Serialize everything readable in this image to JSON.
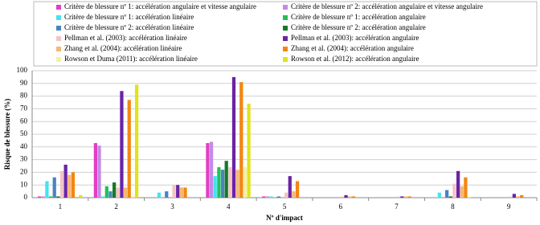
{
  "chart_data": {
    "type": "bar",
    "y_label": "Risque de blessure (%)",
    "x_label": "Nº d'impact",
    "categories": [
      "1",
      "2",
      "3",
      "4",
      "5",
      "6",
      "7",
      "8",
      "9"
    ],
    "ylim": [
      0,
      100
    ],
    "yticks": [
      0,
      10,
      20,
      30,
      40,
      50,
      60,
      70,
      80,
      90,
      100
    ],
    "grid": true,
    "series": [
      {
        "name": "Critère de blessure nº 1: accélération angulaire et vitesse angulaire",
        "color": "#e23fc4",
        "values": [
          1,
          43,
          0,
          43,
          1,
          0,
          0,
          0,
          0
        ]
      },
      {
        "name": "Critère de blessure nº 2: accélération angulaire et vitesse angulaire",
        "color": "#c58ae6",
        "values": [
          1,
          41,
          0,
          44,
          1,
          0,
          0,
          0,
          0
        ]
      },
      {
        "name": "Critère de blessure nº 1: accélération linéaire",
        "color": "#45e3ef",
        "values": [
          13,
          1,
          4,
          17,
          1,
          0,
          0,
          4,
          0
        ]
      },
      {
        "name": "Critère de blessure nº 1: accélération angulaire",
        "color": "#22c05a",
        "values": [
          1,
          9,
          0,
          24,
          0,
          0,
          0,
          0,
          0
        ]
      },
      {
        "name": "Critère de blessure nº 2: accélération linéaire",
        "color": "#4a82c2",
        "values": [
          16,
          5,
          5,
          22,
          1,
          0,
          0,
          6,
          0
        ]
      },
      {
        "name": "Critère de blessure nº 2: accélération angulaire",
        "color": "#137a28",
        "values": [
          1,
          12,
          0,
          29,
          0,
          0,
          0,
          1,
          0
        ]
      },
      {
        "name": "Pellman et al. (2003): accélération linéaire",
        "color": "#f4c4c4",
        "values": [
          21,
          8,
          10,
          24,
          4,
          1,
          1,
          11,
          1
        ]
      },
      {
        "name": "Pellman et al. (2003): accélération angulaire",
        "color": "#6a24a4",
        "values": [
          26,
          84,
          10,
          95,
          17,
          2,
          1,
          21,
          3
        ]
      },
      {
        "name": "Zhang et al. (2004): accélération linéaire",
        "color": "#f5b676",
        "values": [
          18,
          8,
          8,
          22,
          5,
          1,
          1,
          9,
          1
        ]
      },
      {
        "name": "Zhang et al. (2004): accélération angulaire",
        "color": "#f3860f",
        "values": [
          20,
          77,
          8,
          91,
          13,
          1,
          1,
          16,
          2
        ]
      },
      {
        "name": "Rowson et Duma (2011): accélération linéaire",
        "color": "#f3f0a6",
        "values": [
          0,
          1,
          0,
          24,
          0,
          0,
          0,
          1,
          0
        ]
      },
      {
        "name": "Rowson et al. (2012): accélération angulaire",
        "color": "#e2e21e",
        "values": [
          2,
          89,
          0,
          74,
          0,
          0,
          0,
          0,
          0
        ]
      }
    ]
  }
}
